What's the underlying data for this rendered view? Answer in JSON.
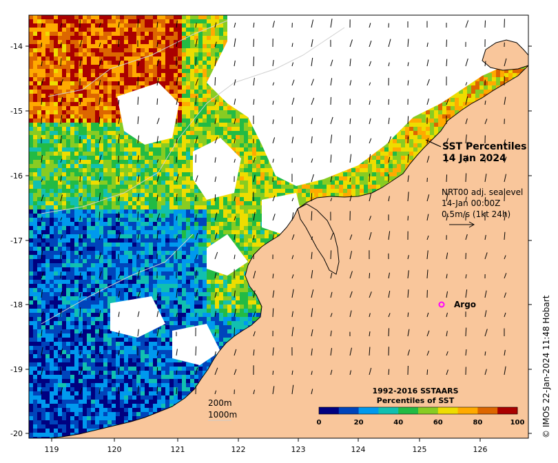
{
  "map": {
    "title_line1": "SST Percentiles",
    "title_line2": "14 Jan 2024",
    "current_source": "NRT00 adj. sealevel",
    "current_time": "14-Jan 00:00Z",
    "current_scale": "0.5m/s (1kt 24h)",
    "argo_label": "Argo",
    "contour_200": "200m",
    "contour_1000": "1000m",
    "credit": "© IMOS 22-Jan-2024 11:48 Hobart",
    "x_ticks": [
      "119",
      "120",
      "121",
      "122",
      "123",
      "124",
      "125",
      "126"
    ],
    "y_ticks": [
      "-14",
      "-15",
      "-16",
      "-17",
      "-18",
      "-19",
      "-20"
    ],
    "colors": {
      "land": "#f9c69b",
      "nodata": "#ffffff",
      "argo": "#ff00ff"
    }
  },
  "legend": {
    "title_line1": "1992-2016 SSTAARS",
    "title_line2": "Percentiles of SST",
    "ticks": [
      "0",
      "20",
      "40",
      "60",
      "80",
      "100"
    ],
    "colors": [
      "#000080",
      "#0044bb",
      "#0099ee",
      "#11c0b0",
      "#22bb44",
      "#88cc22",
      "#eedd00",
      "#ffaa00",
      "#dd6600",
      "#aa0000"
    ]
  }
}
